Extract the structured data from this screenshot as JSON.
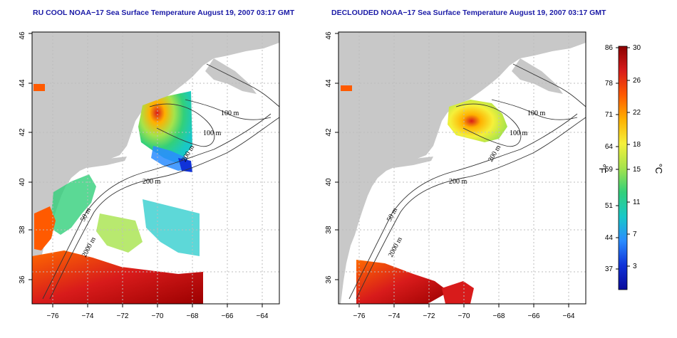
{
  "panels": [
    {
      "id": "left",
      "title": "RU COOL NOAA−17 Sea Surface Temperature August 19, 2007 03:17 GMT"
    },
    {
      "id": "right",
      "title": "DECLOUDED NOAA−17 Sea Surface Temperature August 19, 2007 03:17 GMT"
    }
  ],
  "axes": {
    "lon_ticks": [
      "−76",
      "−74",
      "−72",
      "−70",
      "−68",
      "−66",
      "−64"
    ],
    "lat_ticks": [
      "36",
      "38",
      "40",
      "42",
      "44",
      "46"
    ]
  },
  "contour_labels": {
    "left": [
      "100 m",
      "100 m",
      "200 m",
      "200 m",
      "50 m",
      "2000 m"
    ],
    "right": [
      "100 m",
      "100 m",
      "200 m",
      "200 m",
      "50 m",
      "2000 m"
    ]
  },
  "colorbar": {
    "fahrenheit_ticks": [
      "86",
      "78",
      "71",
      "64",
      "59",
      "51",
      "44",
      "37"
    ],
    "celsius_ticks": [
      "30",
      "26",
      "22",
      "18",
      "15",
      "11",
      "7",
      "3"
    ],
    "fahrenheit_unit": "°F",
    "celsius_unit": "°C",
    "colors": [
      "#8b0000",
      "#d81b1b",
      "#ff5a00",
      "#ffb000",
      "#f5f03a",
      "#a6e34b",
      "#32d07a",
      "#18c8c8",
      "#2a8cff",
      "#1032d8",
      "#0a0a9a"
    ]
  },
  "colors": {
    "land": "#c8c8c8",
    "ocean": "#ffffff",
    "title": "#1a1aa6",
    "grid": "#bdbdbd"
  }
}
